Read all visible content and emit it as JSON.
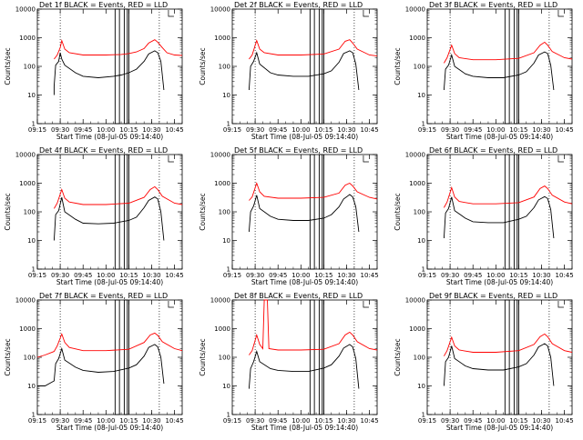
{
  "chart_data": [
    {
      "panel": 1,
      "type": "line",
      "title": "Det 1f BLACK = Events, RED = LLD",
      "ylabel": "Counts/sec",
      "xlabel": "Start Time (08-Jul-05 09:14:40)",
      "ylog": true,
      "ylim": [
        1,
        10000
      ],
      "yticks": [
        "1",
        "10",
        "100",
        "1000",
        "10000"
      ],
      "xlim": [
        "09:15",
        "10:50"
      ],
      "xticks": [
        "09:15",
        "09:30",
        "09:45",
        "10:00",
        "10:15",
        "10:30",
        "10:45"
      ],
      "colors": {
        "events": "#000000",
        "lld": "#ff0000"
      },
      "series": [
        {
          "name": "Events",
          "x": [
            "09:26",
            "09:26",
            "09:27",
            "09:29",
            "09:30",
            "09:31",
            "09:33",
            "09:40",
            "09:45",
            "09:55",
            "10:05",
            "10:10",
            "10:15",
            "10:20",
            "10:25",
            "10:28",
            "10:32",
            "10:34",
            "10:36",
            "10:38"
          ],
          "values": [
            10,
            20,
            110,
            150,
            300,
            180,
            110,
            60,
            45,
            40,
            45,
            50,
            60,
            80,
            150,
            270,
            350,
            300,
            150,
            15
          ]
        },
        {
          "name": "LLD",
          "x": [
            "09:26",
            "09:28",
            "09:30",
            "09:31",
            "09:33",
            "09:36",
            "09:45",
            "10:00",
            "10:10",
            "10:15",
            "10:20",
            "10:25",
            "10:28",
            "10:32",
            "10:34",
            "10:37",
            "10:40",
            "10:45",
            "10:50"
          ],
          "values": [
            180,
            250,
            450,
            800,
            400,
            300,
            250,
            250,
            260,
            280,
            320,
            420,
            650,
            850,
            700,
            450,
            300,
            250,
            240
          ]
        }
      ],
      "annotations": [
        "dotted vertical at 09:30",
        "dotted vertical at 10:35",
        "vertical bars near 10:07-10:17"
      ]
    },
    {
      "panel": 2,
      "type": "line",
      "title": "Det 2f BLACK = Events, RED = LLD",
      "ylabel": "Counts/sec",
      "xlabel": "Start Time (08-Jul-05 09:14:40)",
      "ylog": true,
      "ylim": [
        1,
        10000
      ],
      "yticks": [
        "1",
        "10",
        "100",
        "1000",
        "10000"
      ],
      "xlim": [
        "09:15",
        "10:50"
      ],
      "xticks": [
        "09:15",
        "09:30",
        "09:45",
        "10:00",
        "10:15",
        "10:30",
        "10:45"
      ],
      "series": [
        {
          "name": "Events",
          "x": [
            "09:26",
            "09:27",
            "09:29",
            "09:31",
            "09:33",
            "09:40",
            "09:45",
            "09:55",
            "10:05",
            "10:15",
            "10:20",
            "10:25",
            "10:28",
            "10:32",
            "10:34",
            "10:36",
            "10:38"
          ],
          "values": [
            15,
            100,
            150,
            300,
            120,
            60,
            50,
            45,
            45,
            55,
            70,
            140,
            280,
            350,
            300,
            120,
            15
          ]
        },
        {
          "name": "LLD",
          "x": [
            "09:26",
            "09:28",
            "09:31",
            "09:33",
            "09:36",
            "09:45",
            "10:00",
            "10:15",
            "10:25",
            "10:29",
            "10:32",
            "10:34",
            "10:37",
            "10:45",
            "10:50"
          ],
          "values": [
            180,
            250,
            800,
            400,
            300,
            250,
            250,
            270,
            400,
            750,
            850,
            650,
            400,
            250,
            230
          ]
        }
      ]
    },
    {
      "panel": 3,
      "type": "line",
      "title": "Det 3f BLACK = Events, RED = LLD",
      "ylabel": "Counts/sec",
      "xlabel": "Start Time (08-Jul-05 09:14:40)",
      "ylog": true,
      "ylim": [
        1,
        10000
      ],
      "yticks": [
        "1",
        "10",
        "100",
        "1000",
        "10000"
      ],
      "xlim": [
        "09:15",
        "10:50"
      ],
      "xticks": [
        "09:15",
        "09:30",
        "09:45",
        "10:00",
        "10:15",
        "10:30",
        "10:45"
      ],
      "series": [
        {
          "name": "Events",
          "x": [
            "09:26",
            "09:27",
            "09:29",
            "09:31",
            "09:33",
            "09:40",
            "09:45",
            "09:55",
            "10:05",
            "10:15",
            "10:20",
            "10:25",
            "10:28",
            "10:32",
            "10:34",
            "10:36",
            "10:38"
          ],
          "values": [
            15,
            80,
            110,
            250,
            100,
            55,
            45,
            40,
            40,
            50,
            65,
            130,
            250,
            320,
            280,
            110,
            15
          ]
        },
        {
          "name": "LLD",
          "x": [
            "09:26",
            "09:28",
            "09:31",
            "09:33",
            "09:36",
            "09:45",
            "10:00",
            "10:15",
            "10:25",
            "10:29",
            "10:32",
            "10:34",
            "10:37",
            "10:45",
            "10:50"
          ],
          "values": [
            130,
            200,
            550,
            280,
            200,
            170,
            170,
            190,
            300,
            550,
            700,
            550,
            330,
            200,
            180
          ]
        }
      ]
    },
    {
      "panel": 4,
      "type": "line",
      "title": "Det 4f BLACK = Events, RED = LLD",
      "ylabel": "Counts/sec",
      "xlabel": "Start Time (08-Jul-05 09:14:40)",
      "ylog": true,
      "ylim": [
        1,
        10000
      ],
      "yticks": [
        "1",
        "10",
        "100",
        "1000",
        "10000"
      ],
      "xlim": [
        "09:15",
        "10:50"
      ],
      "xticks": [
        "09:15",
        "09:30",
        "09:45",
        "10:00",
        "10:15",
        "10:30",
        "10:45"
      ],
      "series": [
        {
          "name": "Events",
          "x": [
            "09:26",
            "09:27",
            "09:29",
            "09:31",
            "09:33",
            "09:40",
            "09:45",
            "09:55",
            "10:05",
            "10:15",
            "10:20",
            "10:25",
            "10:28",
            "10:32",
            "10:34",
            "10:36",
            "10:38"
          ],
          "values": [
            10,
            80,
            110,
            320,
            100,
            55,
            40,
            38,
            40,
            50,
            65,
            140,
            250,
            330,
            280,
            100,
            10
          ]
        },
        {
          "name": "LLD",
          "x": [
            "09:26",
            "09:28",
            "09:31",
            "09:33",
            "09:36",
            "09:45",
            "10:00",
            "10:15",
            "10:25",
            "10:29",
            "10:32",
            "10:34",
            "10:37",
            "10:45",
            "10:50"
          ],
          "values": [
            130,
            200,
            600,
            300,
            220,
            180,
            180,
            200,
            320,
            600,
            750,
            600,
            350,
            200,
            180
          ]
        }
      ]
    },
    {
      "panel": 5,
      "type": "line",
      "title": "Det 5f BLACK = Events, RED = LLD",
      "ylabel": "Counts/sec",
      "xlabel": "Start Time (08-Jul-05 09:14:40)",
      "ylog": true,
      "ylim": [
        1,
        10000
      ],
      "yticks": [
        "1",
        "10",
        "100",
        "1000",
        "10000"
      ],
      "xlim": [
        "09:15",
        "10:50"
      ],
      "xticks": [
        "09:15",
        "09:30",
        "09:45",
        "10:00",
        "10:15",
        "10:30",
        "10:45"
      ],
      "series": [
        {
          "name": "Events",
          "x": [
            "09:26",
            "09:27",
            "09:29",
            "09:31",
            "09:33",
            "09:40",
            "09:45",
            "09:55",
            "10:05",
            "10:15",
            "10:20",
            "10:25",
            "10:28",
            "10:32",
            "10:34",
            "10:36",
            "10:38"
          ],
          "values": [
            20,
            100,
            160,
            380,
            130,
            70,
            55,
            50,
            50,
            60,
            80,
            150,
            280,
            400,
            330,
            150,
            20
          ]
        },
        {
          "name": "LLD",
          "x": [
            "09:26",
            "09:28",
            "09:31",
            "09:33",
            "09:36",
            "09:45",
            "10:00",
            "10:15",
            "10:25",
            "10:29",
            "10:32",
            "10:34",
            "10:37",
            "10:45",
            "10:50"
          ],
          "values": [
            250,
            330,
            1000,
            500,
            350,
            300,
            300,
            320,
            450,
            850,
            1000,
            800,
            500,
            320,
            280
          ]
        }
      ]
    },
    {
      "panel": 6,
      "type": "line",
      "title": "Det 6f BLACK = Events, RED = LLD",
      "ylabel": "Counts/sec",
      "xlabel": "Start Time (08-Jul-05 09:14:40)",
      "ylog": true,
      "ylim": [
        1,
        10000
      ],
      "yticks": [
        "1",
        "10",
        "100",
        "1000",
        "10000"
      ],
      "xlim": [
        "09:15",
        "10:50"
      ],
      "xticks": [
        "09:15",
        "09:30",
        "09:45",
        "10:00",
        "10:15",
        "10:30",
        "10:45"
      ],
      "series": [
        {
          "name": "Events",
          "x": [
            "09:26",
            "09:27",
            "09:29",
            "09:31",
            "09:33",
            "09:40",
            "09:45",
            "09:55",
            "10:05",
            "10:15",
            "10:20",
            "10:25",
            "10:28",
            "10:32",
            "10:34",
            "10:36",
            "10:38"
          ],
          "values": [
            12,
            90,
            130,
            330,
            110,
            60,
            45,
            42,
            42,
            55,
            70,
            140,
            260,
            340,
            290,
            120,
            12
          ]
        },
        {
          "name": "LLD",
          "x": [
            "09:26",
            "09:28",
            "09:31",
            "09:33",
            "09:36",
            "09:45",
            "10:00",
            "10:15",
            "10:25",
            "10:29",
            "10:32",
            "10:34",
            "10:37",
            "10:45",
            "10:50"
          ],
          "values": [
            140,
            220,
            700,
            330,
            230,
            190,
            190,
            210,
            330,
            650,
            800,
            650,
            380,
            220,
            190
          ]
        }
      ]
    },
    {
      "panel": 7,
      "type": "line",
      "title": "Det 7f BLACK = Events, RED = LLD",
      "ylabel": "Counts/sec",
      "xlabel": "Start Time (08-Jul-05 09:14:40)",
      "ylog": true,
      "ylim": [
        1,
        10000
      ],
      "yticks": [
        "1",
        "10",
        "100",
        "1000",
        "10000"
      ],
      "xlim": [
        "09:15",
        "10:50"
      ],
      "xticks": [
        "09:15",
        "09:30",
        "09:45",
        "10:00",
        "10:15",
        "10:30",
        "10:45"
      ],
      "series": [
        {
          "name": "Events",
          "x": [
            "09:15",
            "09:20",
            "09:26",
            "09:27",
            "09:29",
            "09:31",
            "09:33",
            "09:40",
            "09:45",
            "09:55",
            "10:05",
            "10:15",
            "10:20",
            "10:25",
            "10:28",
            "10:32",
            "10:34",
            "10:36",
            "10:38"
          ],
          "values": [
            10,
            10,
            15,
            60,
            90,
            200,
            80,
            45,
            35,
            30,
            32,
            42,
            55,
            110,
            220,
            280,
            230,
            100,
            12
          ]
        },
        {
          "name": "LLD",
          "x": [
            "09:15",
            "09:20",
            "09:26",
            "09:28",
            "09:31",
            "09:33",
            "09:36",
            "09:45",
            "10:00",
            "10:15",
            "10:25",
            "10:29",
            "10:32",
            "10:34",
            "10:37",
            "10:45",
            "10:50"
          ],
          "values": [
            100,
            120,
            160,
            250,
            650,
            330,
            220,
            170,
            170,
            190,
            330,
            600,
            700,
            580,
            350,
            200,
            170
          ]
        }
      ]
    },
    {
      "panel": 8,
      "type": "line",
      "title": "Det 8f BLACK = Events, RED = LLD",
      "ylabel": "Counts/sec",
      "xlabel": "Start Time (08-Jul-05 09:14:40)",
      "ylog": true,
      "ylim": [
        1,
        10000
      ],
      "yticks": [
        "1",
        "10",
        "100",
        "1000",
        "10000"
      ],
      "xlim": [
        "09:15",
        "10:50"
      ],
      "xticks": [
        "09:15",
        "09:30",
        "09:45",
        "10:00",
        "10:15",
        "10:30",
        "10:45"
      ],
      "series": [
        {
          "name": "Events",
          "x": [
            "09:26",
            "09:27",
            "09:29",
            "09:31",
            "09:33",
            "09:40",
            "09:45",
            "09:55",
            "10:05",
            "10:15",
            "10:20",
            "10:25",
            "10:28",
            "10:32",
            "10:34",
            "10:36",
            "10:38"
          ],
          "values": [
            8,
            40,
            70,
            160,
            70,
            40,
            35,
            32,
            32,
            42,
            55,
            110,
            210,
            280,
            230,
            90,
            8
          ]
        },
        {
          "name": "LLD",
          "x": [
            "09:26",
            "09:28",
            "09:31",
            "09:33",
            "09:35",
            "09:36",
            "09:38",
            "09:39",
            "09:45",
            "10:00",
            "10:15",
            "10:25",
            "10:29",
            "10:32",
            "10:34",
            "10:37",
            "10:45",
            "10:50"
          ],
          "values": [
            120,
            170,
            600,
            280,
            200,
            10000,
            10000,
            200,
            180,
            180,
            190,
            300,
            600,
            750,
            600,
            350,
            200,
            180
          ]
        }
      ]
    },
    {
      "panel": 9,
      "type": "line",
      "title": "Det 9f BLACK = Events, RED = LLD",
      "ylabel": "Counts/sec",
      "xlabel": "Start Time (08-Jul-05 09:14:40)",
      "ylog": true,
      "ylim": [
        1,
        10000
      ],
      "yticks": [
        "1",
        "10",
        "100",
        "1000",
        "10000"
      ],
      "xlim": [
        "09:15",
        "10:50"
      ],
      "xticks": [
        "09:15",
        "09:30",
        "09:45",
        "10:00",
        "10:15",
        "10:30",
        "10:45"
      ],
      "series": [
        {
          "name": "Events",
          "x": [
            "09:26",
            "09:27",
            "09:29",
            "09:31",
            "09:33",
            "09:40",
            "09:45",
            "09:55",
            "10:05",
            "10:15",
            "10:20",
            "10:25",
            "10:28",
            "10:32",
            "10:34",
            "10:36",
            "10:38"
          ],
          "values": [
            10,
            70,
            100,
            250,
            90,
            50,
            40,
            36,
            36,
            46,
            60,
            120,
            230,
            300,
            250,
            100,
            10
          ]
        },
        {
          "name": "LLD",
          "x": [
            "09:26",
            "09:28",
            "09:31",
            "09:33",
            "09:36",
            "09:45",
            "10:00",
            "10:15",
            "10:25",
            "10:29",
            "10:32",
            "10:34",
            "10:37",
            "10:45",
            "10:50"
          ],
          "values": [
            110,
            170,
            500,
            250,
            180,
            150,
            150,
            170,
            280,
            520,
            650,
            520,
            300,
            170,
            150
          ]
        }
      ]
    }
  ]
}
